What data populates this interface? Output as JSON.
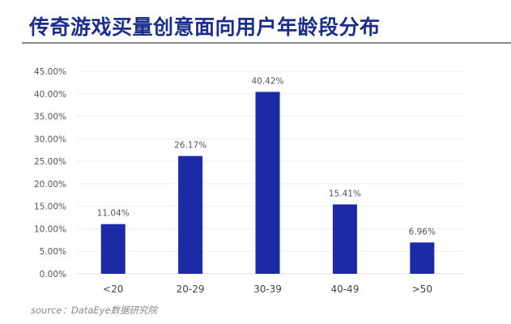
{
  "title": "传奇游戏买量创意面向用户年龄段分布",
  "source": "source：DataEye数据研究院",
  "watermark": "DataEye",
  "chart_data": {
    "type": "bar",
    "title": "传奇游戏买量创意面向用户年龄段分布",
    "categories": [
      "<20",
      "20-29",
      "30-39",
      "40-49",
      ">50"
    ],
    "values": [
      11.04,
      26.17,
      40.42,
      15.41,
      6.96
    ],
    "data_labels": [
      "11.04%",
      "26.17%",
      "40.42%",
      "15.41%",
      "6.96%"
    ],
    "yticks": [
      "0.00%",
      "5.00%",
      "10.00%",
      "15.00%",
      "20.00%",
      "25.00%",
      "30.00%",
      "35.00%",
      "40.00%",
      "45.00%"
    ],
    "ylim": [
      0,
      45
    ],
    "grid": true,
    "bar_color": "#1c2aa6",
    "xlabel": "",
    "ylabel": ""
  }
}
